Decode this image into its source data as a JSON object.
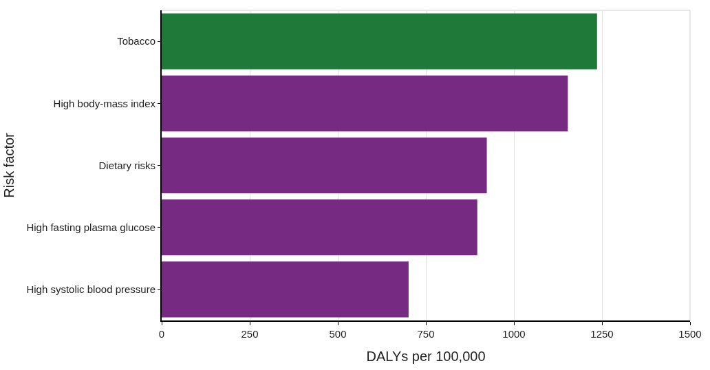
{
  "chart_data": {
    "type": "bar",
    "orientation": "horizontal",
    "xlabel": "DALYs per 100,000",
    "ylabel": "Risk factor",
    "categories": [
      "Tobacco",
      "High body-mass index",
      "Dietary risks",
      "High fasting plasma glucose",
      "High systolic blood pressure"
    ],
    "values": [
      1236,
      1153,
      923,
      896,
      701
    ],
    "colors": [
      "#1f7a3a",
      "#772a82",
      "#772a82",
      "#772a82",
      "#772a82"
    ],
    "xlim": [
      0,
      1500
    ],
    "xticks": [
      0,
      250,
      500,
      750,
      1000,
      1250,
      1500
    ],
    "grid": "x"
  }
}
